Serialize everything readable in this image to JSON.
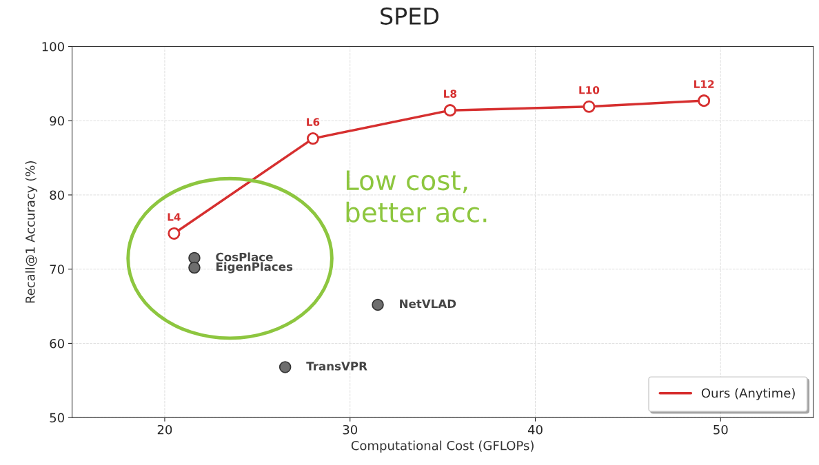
{
  "chart_data": {
    "type": "line",
    "title": "SPED",
    "xlabel": "Computational Cost (GFLOPs)",
    "ylabel": "Recall@1 Accuracy (%)",
    "xlim": [
      15,
      55
    ],
    "xticks": [
      20,
      30,
      40,
      50
    ],
    "ylim": [
      50,
      100
    ],
    "yticks": [
      50,
      60,
      70,
      80,
      90,
      100
    ],
    "grid": true,
    "legend": "bottom right",
    "series": [
      {
        "name": "Ours (Anytime)",
        "color": "#d62f2f",
        "marker": "circle",
        "x": [
          20.5,
          28.0,
          35.4,
          42.9,
          49.1
        ],
        "values": [
          74.8,
          87.6,
          91.4,
          91.9,
          92.7
        ]
      },
      {
        "name": "CosPlace",
        "color": "#6e6e6e",
        "type": "scatter",
        "marker": "circle",
        "x": [
          21.6
        ],
        "values": [
          71.5
        ]
      },
      {
        "name": "EigenPlaces",
        "color": "#6e6e6e",
        "type": "scatter",
        "marker": "circle",
        "x": [
          21.6
        ],
        "values": [
          70.2
        ]
      },
      {
        "name": "NetVLAD",
        "color": "#6e6e6e",
        "type": "scatter",
        "marker": "circle",
        "x": [
          31.5
        ],
        "values": [
          65.2
        ]
      },
      {
        "name": "TransVPR",
        "color": "#6e6e6e",
        "type": "scatter",
        "marker": "circle",
        "x": [
          26.5
        ],
        "values": [
          56.8
        ]
      }
    ],
    "annotations": [
      {
        "text": "L4",
        "x": 20.5,
        "y": 74.8
      },
      {
        "text": "L6",
        "x": 28.0,
        "y": 87.6
      },
      {
        "text": "L8",
        "x": 35.4,
        "y": 91.4
      },
      {
        "text": "L10",
        "x": 42.9,
        "y": 91.9
      },
      {
        "text": "L12",
        "x": 49.1,
        "y": 92.7
      },
      "Low cost,\nbetter acc."
    ]
  }
}
